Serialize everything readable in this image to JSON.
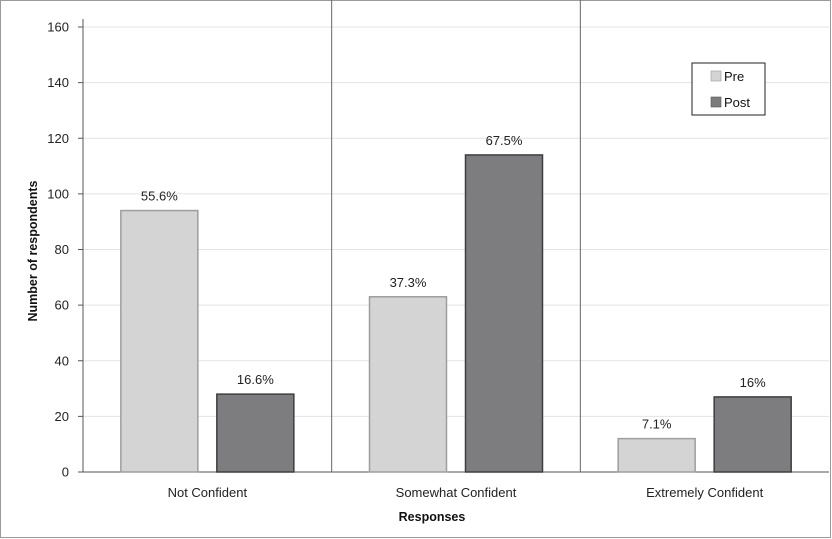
{
  "chart_data": {
    "type": "bar",
    "xlabel": "Responses",
    "ylabel": "Number of respondents",
    "ylim": [
      0,
      160
    ],
    "yticks": [
      0,
      20,
      40,
      60,
      80,
      100,
      120,
      140,
      160
    ],
    "categories": [
      "Not Confident",
      "Somewhat Confident",
      "Extremely Confident"
    ],
    "series": [
      {
        "name": "Pre",
        "color": "#d4d4d4",
        "values": [
          94,
          63,
          12
        ],
        "labels": [
          "55.6%",
          "37.3%",
          "7.1%"
        ]
      },
      {
        "name": "Post",
        "color": "#7d7d80",
        "values": [
          28,
          114,
          27
        ],
        "labels": [
          "16.6%",
          "67.5%",
          "16%"
        ]
      }
    ],
    "legend": "top-right",
    "grid": true
  }
}
